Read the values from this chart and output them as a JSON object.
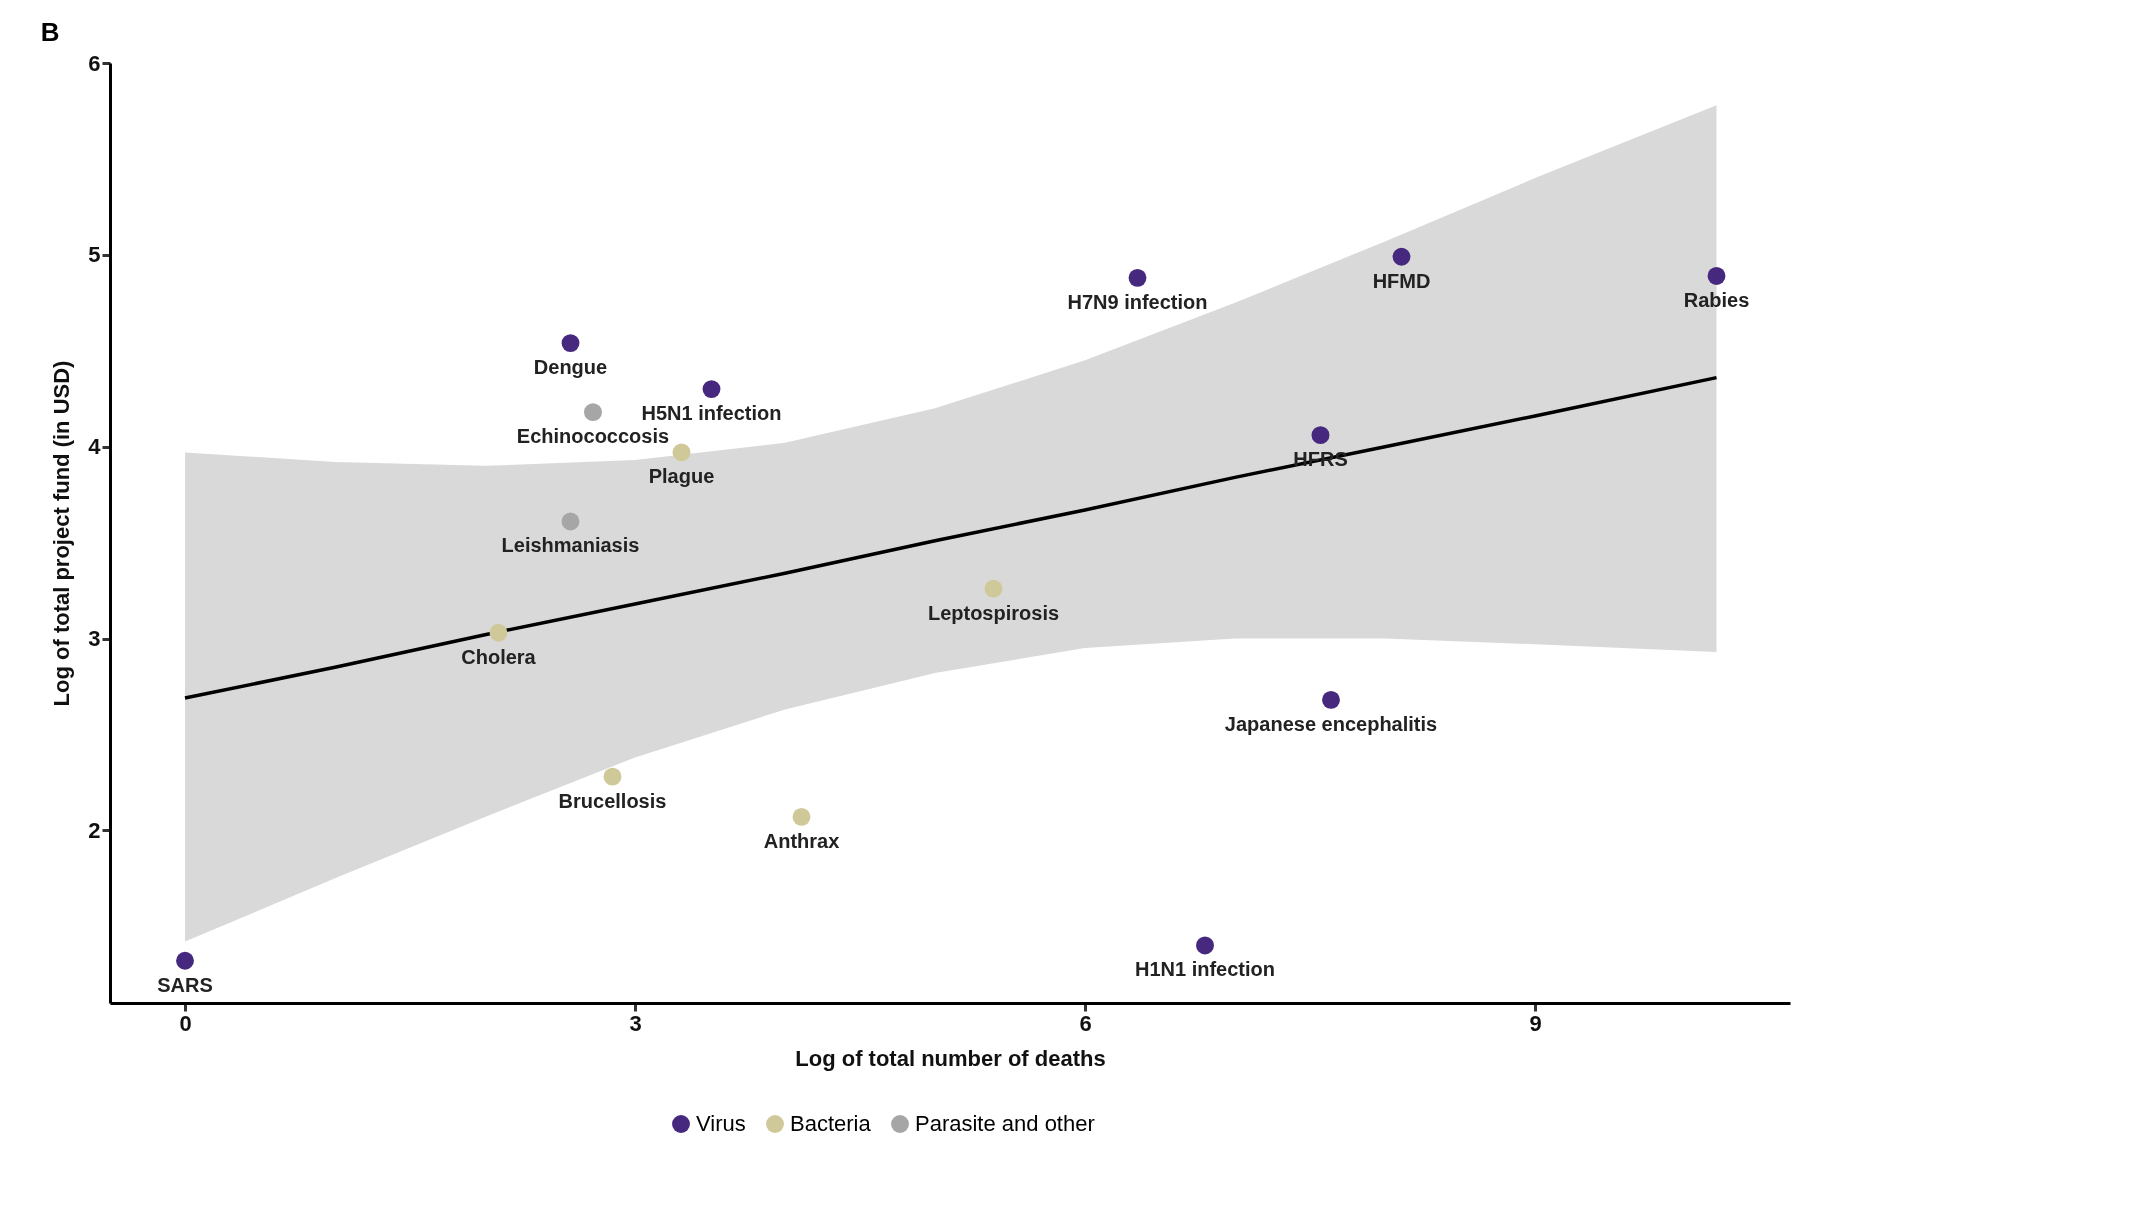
{
  "chart_data": {
    "type": "scatter",
    "title": "B",
    "xlabel": "Log of total number of deaths",
    "ylabel": "Log of total project fund (in USD)",
    "xlim": [
      -0.5,
      10.7
    ],
    "ylim": [
      1.1,
      6
    ],
    "xticks": [
      0,
      3,
      6,
      9
    ],
    "yticks": [
      2,
      3,
      4,
      5,
      6
    ],
    "grid": false,
    "legend": "bottom",
    "marker": "circle",
    "series": [
      {
        "name": "Virus",
        "color": "#46287f",
        "x": [
          0,
          2.57,
          3.51,
          6.35,
          8.11,
          10.21,
          7.57,
          7.64,
          6.8
        ],
        "values": [
          1.32,
          4.54,
          4.3,
          4.88,
          4.99,
          4.89,
          4.06,
          2.68,
          1.4
        ]
      },
      {
        "name": "Bacteria",
        "color": "#cfc99a",
        "x": [
          3.31,
          2.09,
          2.85,
          4.11,
          5.39
        ],
        "values": [
          3.97,
          3.03,
          2.28,
          2.07,
          3.26
        ]
      },
      {
        "name": "Parasite and other",
        "color": "#a6a6a6",
        "x": [
          2.72,
          2.57
        ],
        "values": [
          4.18,
          3.61
        ]
      },
      {
        "type": "line",
        "color": "#000000",
        "line_style": "solid",
        "marker": "none",
        "x": [
          0,
          1,
          2,
          3,
          4,
          5,
          6,
          7,
          8,
          9,
          10.21
        ],
        "values": [
          2.69,
          2.85,
          3.02,
          3.18,
          3.34,
          3.51,
          3.67,
          3.84,
          4.0,
          4.16,
          4.36
        ],
        "lower": [
          1.42,
          1.75,
          2.07,
          2.38,
          2.63,
          2.82,
          2.95,
          3.0,
          3.0,
          2.97,
          2.93
        ],
        "upper": [
          3.97,
          3.92,
          3.9,
          3.93,
          4.02,
          4.2,
          4.45,
          4.75,
          5.07,
          5.4,
          5.78
        ]
      }
    ],
    "annotations": [
      {
        "text": "SARS",
        "x": 0,
        "y": 1.32
      },
      {
        "text": "Dengue",
        "x": 2.57,
        "y": 4.54
      },
      {
        "text": "H5N1 infection",
        "x": 3.51,
        "y": 4.3
      },
      {
        "text": "Echinococcosis",
        "x": 2.72,
        "y": 4.18
      },
      {
        "text": "Plague",
        "x": 3.31,
        "y": 3.97
      },
      {
        "text": "Leishmaniasis",
        "x": 2.57,
        "y": 3.61
      },
      {
        "text": "Cholera",
        "x": 2.09,
        "y": 3.03
      },
      {
        "text": "Brucellosis",
        "x": 2.85,
        "y": 2.28
      },
      {
        "text": "Anthrax",
        "x": 4.11,
        "y": 2.07
      },
      {
        "text": "Leptospirosis",
        "x": 5.39,
        "y": 3.26
      },
      {
        "text": "H7N9 infection",
        "x": 6.35,
        "y": 4.88
      },
      {
        "text": "HFMD",
        "x": 8.11,
        "y": 4.99
      },
      {
        "text": "Rabies",
        "x": 10.21,
        "y": 4.89
      },
      {
        "text": "HFRS",
        "x": 7.57,
        "y": 4.06
      },
      {
        "text": "Japanese encephalitis",
        "x": 7.64,
        "y": 2.68
      },
      {
        "text": "H1N1 infection",
        "x": 6.8,
        "y": 1.4
      }
    ]
  }
}
